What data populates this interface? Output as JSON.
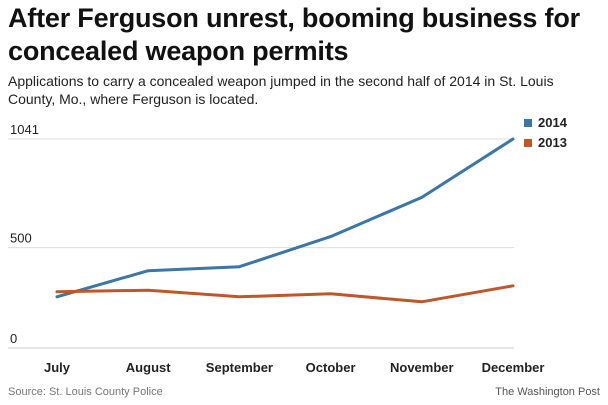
{
  "header": {
    "title": "After Ferguson unrest, booming business for concealed weapon permits",
    "subtitle": "Applications to carry a concealed weapon jumped in the second half of 2014 in St. Louis County, Mo., where Ferguson is located."
  },
  "footer": {
    "source": "Source: St. Louis County Police",
    "credit": "The Washington Post"
  },
  "colors": {
    "series_2014": "#3a76a8",
    "series_2013": "#c0572a",
    "gridline": "#dddddd",
    "baseline": "#cccccc"
  },
  "chart_data": {
    "type": "line",
    "title": "",
    "xlabel": "",
    "ylabel": "",
    "categories": [
      "July",
      "August",
      "September",
      "October",
      "November",
      "December"
    ],
    "ylim": [
      0,
      1041
    ],
    "yticks": [
      "0",
      "500",
      "1041"
    ],
    "grid": true,
    "legend_position": "top-right",
    "series": [
      {
        "name": "2014",
        "values": [
          255,
          385,
          405,
          555,
          750,
          1041
        ]
      },
      {
        "name": "2013",
        "values": [
          280,
          288,
          255,
          270,
          230,
          310
        ]
      }
    ]
  }
}
